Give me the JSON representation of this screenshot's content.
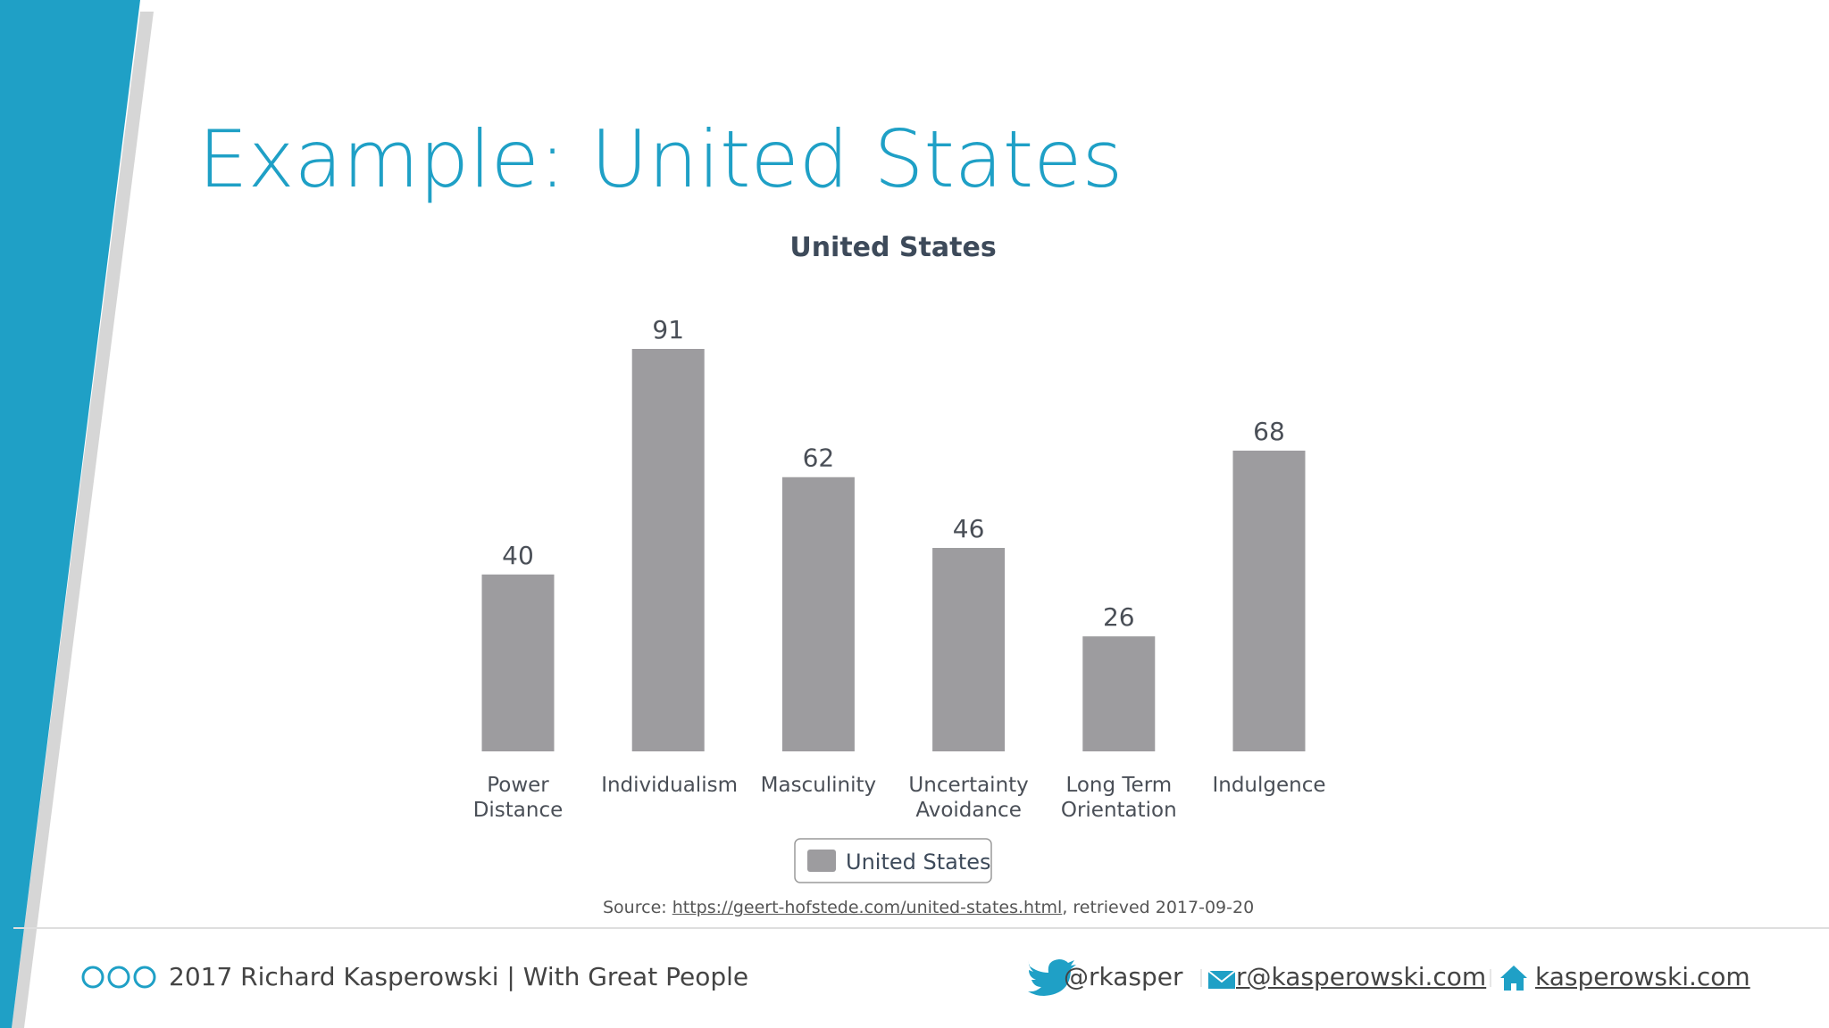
{
  "slide": {
    "title": "Example: United States",
    "source": {
      "prefix": "Source:",
      "link": "https://geert-hofstede.com/united-states.html",
      "suffix": ", retrieved 2017-09-20"
    },
    "footer": {
      "credit": "2017 Richard Kasperowski | With Great People",
      "twitter": "@rkasper",
      "email": "r@kasperowski.com",
      "website": "kasperowski.com"
    }
  },
  "chart_data": {
    "type": "bar",
    "title": "United States",
    "categories": [
      "Power Distance",
      "Individualism",
      "Masculinity",
      "Uncertainty Avoidance",
      "Long Term Orientation",
      "Indulgence"
    ],
    "series": [
      {
        "name": "United States",
        "color": "#9d9c9f",
        "values": [
          40,
          91,
          62,
          46,
          26,
          68
        ]
      }
    ],
    "legend": "bottom"
  }
}
